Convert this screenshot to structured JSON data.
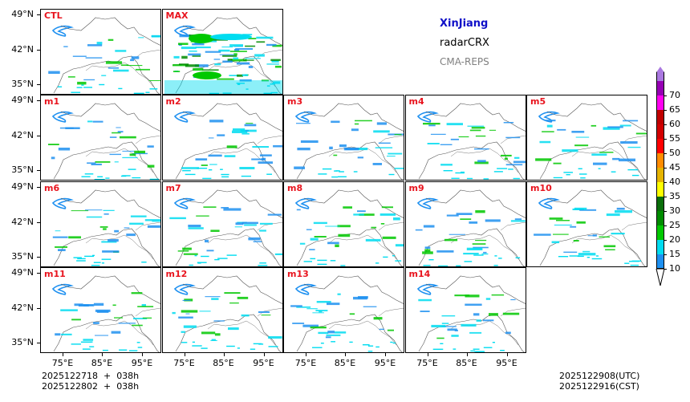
{
  "header": {
    "region": "XinJiang",
    "product": "radarCRX",
    "model": "CMA-REPS"
  },
  "panels": [
    {
      "id": "CTL",
      "row": 0,
      "col": 0
    },
    {
      "id": "MAX",
      "row": 0,
      "col": 1
    },
    {
      "id": "m1",
      "row": 1,
      "col": 0
    },
    {
      "id": "m2",
      "row": 1,
      "col": 1
    },
    {
      "id": "m3",
      "row": 1,
      "col": 2
    },
    {
      "id": "m4",
      "row": 1,
      "col": 3
    },
    {
      "id": "m5",
      "row": 1,
      "col": 4
    },
    {
      "id": "m6",
      "row": 2,
      "col": 0
    },
    {
      "id": "m7",
      "row": 2,
      "col": 1
    },
    {
      "id": "m8",
      "row": 2,
      "col": 2
    },
    {
      "id": "m9",
      "row": 2,
      "col": 3
    },
    {
      "id": "m10",
      "row": 2,
      "col": 4
    },
    {
      "id": "m11",
      "row": 3,
      "col": 0
    },
    {
      "id": "m12",
      "row": 3,
      "col": 1
    },
    {
      "id": "m13",
      "row": 3,
      "col": 2
    },
    {
      "id": "m14",
      "row": 3,
      "col": 3
    }
  ],
  "axes": {
    "lat_labels": [
      "49°N",
      "42°N",
      "35°N"
    ],
    "lon_labels": [
      "75°E",
      "85°E",
      "95°E"
    ]
  },
  "colorbar": {
    "levels": [
      "10",
      "15",
      "20",
      "25",
      "30",
      "35",
      "40",
      "45",
      "50",
      "55",
      "60",
      "65",
      "70"
    ],
    "colors": [
      "#1e90f0",
      "#00dcf0",
      "#00c800",
      "#008c00",
      "#0a6e0a",
      "#ffff00",
      "#e6b400",
      "#ff8c00",
      "#ff0000",
      "#d20000",
      "#c00000",
      "#ff00f0",
      "#9600b4",
      "#aa78e0"
    ]
  },
  "footer": {
    "init_line1": "2025122718  +  038h",
    "init_line2": "2025122802  +  038h",
    "valid_utc": "2025122908(UTC)",
    "valid_cst": "2025122916(CST)"
  }
}
